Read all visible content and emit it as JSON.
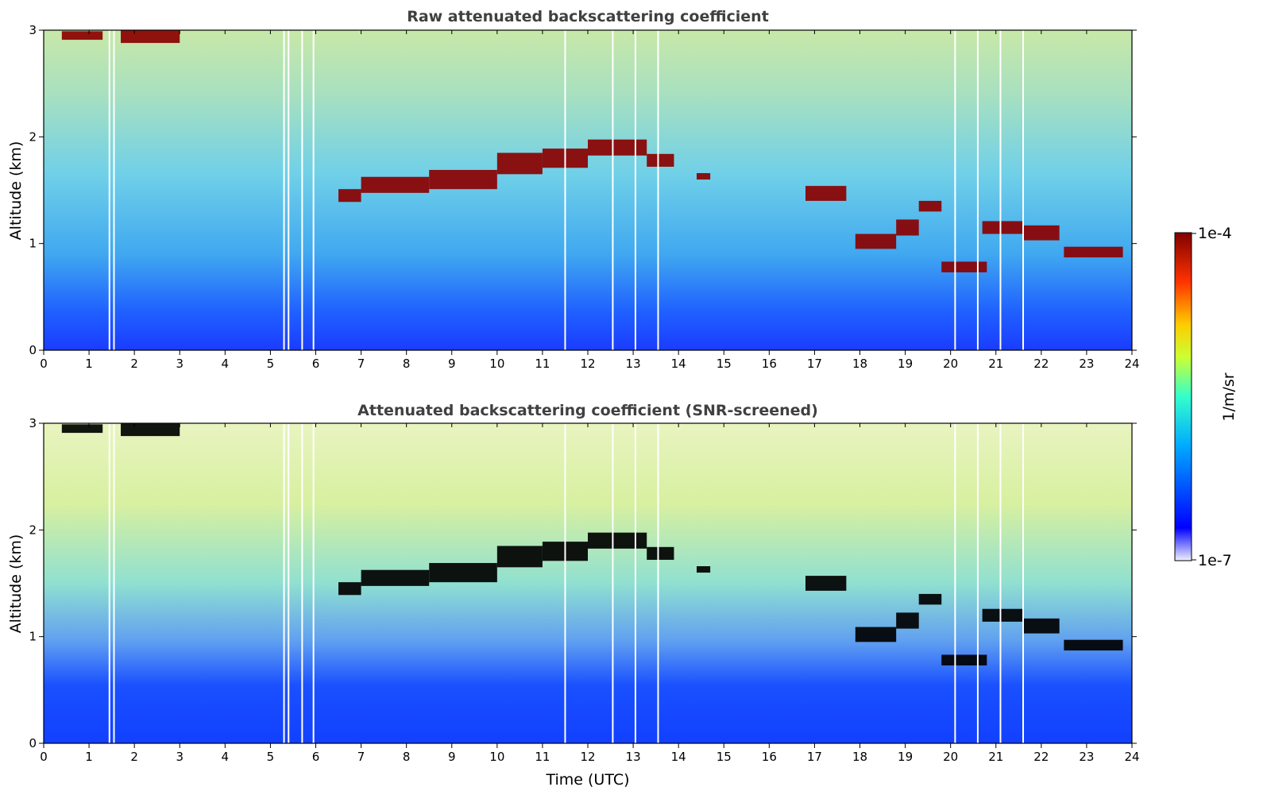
{
  "chart_data": {
    "type": "heatmap",
    "colorbar": {
      "label": "1/m/sr",
      "min_label": "1e-7",
      "max_label": "1e-4",
      "vmin": 1e-07,
      "vmax": 0.0001,
      "scale": "log",
      "colormap": "jet",
      "colormap_stops": [
        "#f0f0ff",
        "#0000ff",
        "#00aaff",
        "#33ffcc",
        "#ccff33",
        "#ffcc00",
        "#ff3300",
        "#800000"
      ]
    },
    "panels": [
      {
        "title": "Raw attenuated backscattering coefficient",
        "xlabel": "",
        "ylabel": "Altitude (km)",
        "xlim": [
          0,
          24
        ],
        "ylim": [
          0,
          3
        ],
        "x_ticks": [
          "0",
          "1",
          "2",
          "3",
          "4",
          "5",
          "6",
          "7",
          "8",
          "9",
          "10",
          "11",
          "12",
          "13",
          "14",
          "15",
          "16",
          "17",
          "18",
          "19",
          "20",
          "21",
          "22",
          "23",
          "24"
        ],
        "y_ticks": [
          "0",
          "1",
          "2",
          "3"
        ],
        "saturated_color": "#8b0000",
        "cloud_segments": [
          {
            "t0": 0.4,
            "t1": 1.3,
            "alt": 2.95,
            "thick": 0.08
          },
          {
            "t0": 1.7,
            "t1": 3.0,
            "alt": 2.94,
            "thick": 0.12
          },
          {
            "t0": 6.5,
            "t1": 7.0,
            "alt": 1.45,
            "thick": 0.12
          },
          {
            "t0": 7.0,
            "t1": 8.5,
            "alt": 1.55,
            "thick": 0.15
          },
          {
            "t0": 8.5,
            "t1": 10.0,
            "alt": 1.6,
            "thick": 0.18
          },
          {
            "t0": 10.0,
            "t1": 11.0,
            "alt": 1.75,
            "thick": 0.2
          },
          {
            "t0": 11.0,
            "t1": 12.0,
            "alt": 1.8,
            "thick": 0.18
          },
          {
            "t0": 12.0,
            "t1": 13.3,
            "alt": 1.9,
            "thick": 0.15
          },
          {
            "t0": 13.3,
            "t1": 13.9,
            "alt": 1.78,
            "thick": 0.12
          },
          {
            "t0": 14.4,
            "t1": 14.7,
            "alt": 1.63,
            "thick": 0.06
          },
          {
            "t0": 16.8,
            "t1": 17.7,
            "alt": 1.47,
            "thick": 0.14
          },
          {
            "t0": 17.9,
            "t1": 18.8,
            "alt": 1.02,
            "thick": 0.14
          },
          {
            "t0": 18.8,
            "t1": 19.3,
            "alt": 1.15,
            "thick": 0.15
          },
          {
            "t0": 19.3,
            "t1": 19.8,
            "alt": 1.35,
            "thick": 0.1
          },
          {
            "t0": 19.8,
            "t1": 20.8,
            "alt": 0.78,
            "thick": 0.1
          },
          {
            "t0": 20.7,
            "t1": 21.6,
            "alt": 1.15,
            "thick": 0.12
          },
          {
            "t0": 21.6,
            "t1": 22.4,
            "alt": 1.1,
            "thick": 0.14
          },
          {
            "t0": 22.5,
            "t1": 23.8,
            "alt": 0.92,
            "thick": 0.1
          }
        ]
      },
      {
        "title": "Attenuated backscattering coefficient (SNR-screened)",
        "xlabel": "Time (UTC)",
        "ylabel": "Altitude (km)",
        "xlim": [
          0,
          24
        ],
        "ylim": [
          0,
          3
        ],
        "x_ticks": [
          "0",
          "1",
          "2",
          "3",
          "4",
          "5",
          "6",
          "7",
          "8",
          "9",
          "10",
          "11",
          "12",
          "13",
          "14",
          "15",
          "16",
          "17",
          "18",
          "19",
          "20",
          "21",
          "22",
          "23",
          "24"
        ],
        "y_ticks": [
          "0",
          "1",
          "2",
          "3"
        ],
        "saturated_color": "#000000",
        "cloud_segments": [
          {
            "t0": 0.4,
            "t1": 1.3,
            "alt": 2.95,
            "thick": 0.08
          },
          {
            "t0": 1.7,
            "t1": 3.0,
            "alt": 2.94,
            "thick": 0.12
          },
          {
            "t0": 6.5,
            "t1": 7.0,
            "alt": 1.45,
            "thick": 0.12
          },
          {
            "t0": 7.0,
            "t1": 8.5,
            "alt": 1.55,
            "thick": 0.15
          },
          {
            "t0": 8.5,
            "t1": 10.0,
            "alt": 1.6,
            "thick": 0.18
          },
          {
            "t0": 10.0,
            "t1": 11.0,
            "alt": 1.75,
            "thick": 0.2
          },
          {
            "t0": 11.0,
            "t1": 12.0,
            "alt": 1.8,
            "thick": 0.18
          },
          {
            "t0": 12.0,
            "t1": 13.3,
            "alt": 1.9,
            "thick": 0.15
          },
          {
            "t0": 13.3,
            "t1": 13.9,
            "alt": 1.78,
            "thick": 0.12
          },
          {
            "t0": 14.4,
            "t1": 14.7,
            "alt": 1.63,
            "thick": 0.06
          },
          {
            "t0": 16.8,
            "t1": 17.7,
            "alt": 1.5,
            "thick": 0.14
          },
          {
            "t0": 17.9,
            "t1": 18.8,
            "alt": 1.02,
            "thick": 0.14
          },
          {
            "t0": 18.8,
            "t1": 19.3,
            "alt": 1.15,
            "thick": 0.15
          },
          {
            "t0": 19.3,
            "t1": 19.8,
            "alt": 1.35,
            "thick": 0.1
          },
          {
            "t0": 19.8,
            "t1": 20.8,
            "alt": 0.78,
            "thick": 0.1
          },
          {
            "t0": 20.7,
            "t1": 21.6,
            "alt": 1.2,
            "thick": 0.12
          },
          {
            "t0": 21.6,
            "t1": 22.4,
            "alt": 1.1,
            "thick": 0.14
          },
          {
            "t0": 22.5,
            "t1": 23.8,
            "alt": 0.92,
            "thick": 0.1
          }
        ]
      }
    ],
    "data_gaps_utc": [
      1.45,
      1.55,
      5.3,
      5.4,
      5.7,
      5.95,
      11.5,
      12.55,
      13.05,
      13.55,
      20.1,
      20.6,
      21.1,
      21.6
    ]
  }
}
